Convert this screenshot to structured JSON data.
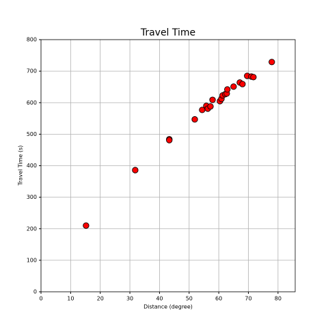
{
  "chart_data": {
    "type": "scatter",
    "title": "Travel Time",
    "x_label": "Distance (degree)",
    "y_label": "Travel Time (s)",
    "series": [
      {
        "color": "#ff0000",
        "x": [
          15.2,
          31.8,
          43.3,
          43.3,
          51.9,
          54.4,
          55.8,
          56.3,
          57.2,
          57.9,
          60.4,
          60.9,
          61.3,
          62.2,
          62.7,
          62.9,
          65.0,
          67.1,
          68.0,
          69.6,
          71.0,
          71.7,
          77.9
        ],
        "values": [
          210,
          386,
          484,
          481,
          547,
          577,
          590,
          581,
          588,
          609,
          605,
          612,
          623,
          627,
          629,
          642,
          651,
          664,
          659,
          685,
          683,
          681,
          729
        ]
      }
    ],
    "xlim": [
      0,
      85.8
    ],
    "xticks": [
      0,
      10,
      20,
      30,
      40,
      50,
      60,
      70,
      80
    ],
    "ylim": [
      0,
      800
    ],
    "yticks": [
      0,
      100,
      200,
      300,
      400,
      500,
      600,
      700,
      800
    ],
    "grid": true
  }
}
